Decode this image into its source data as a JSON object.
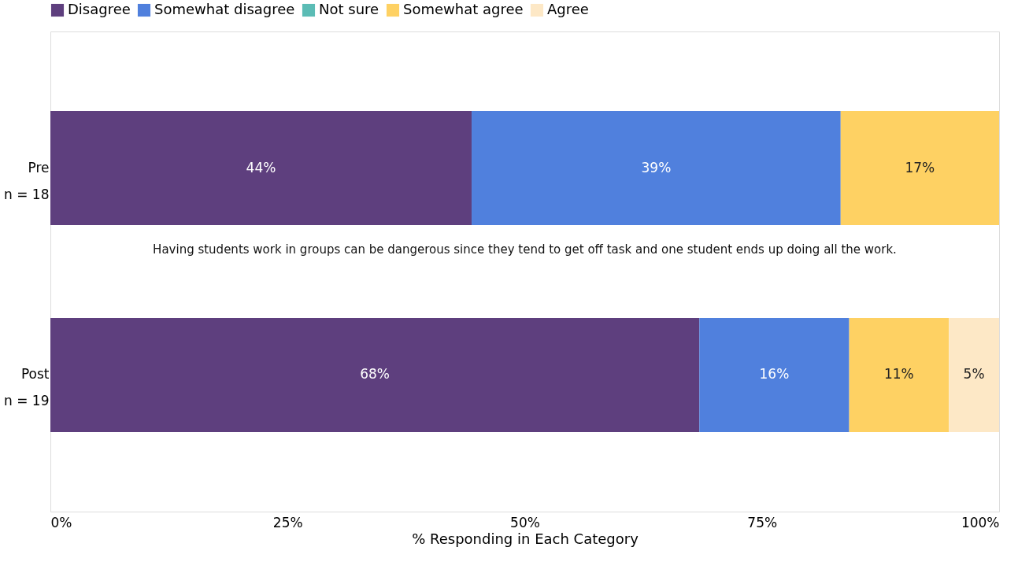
{
  "chart_data": {
    "type": "bar",
    "orientation": "horizontal",
    "stacked": true,
    "xlabel": "% Responding in Each Category",
    "categories": [
      "Pre\nn = 18",
      "Post\nn = 19"
    ],
    "series": [
      {
        "name": "Disagree",
        "color": "#5e3f7e",
        "values": [
          44.4,
          68.4
        ],
        "value_labels": [
          "44%",
          "68%"
        ]
      },
      {
        "name": "Somewhat disagree",
        "color": "#5080dd",
        "values": [
          38.9,
          15.8
        ],
        "value_labels": [
          "39%",
          "16%"
        ]
      },
      {
        "name": "Not sure",
        "color": "#5bbcb5",
        "values": [
          null,
          null
        ],
        "value_labels": [
          null,
          null
        ]
      },
      {
        "name": "Somewhat agree",
        "color": "#fed163",
        "values": [
          16.7,
          10.5
        ],
        "value_labels": [
          "17%",
          "11%"
        ]
      },
      {
        "name": "Agree",
        "color": "#fde8c6",
        "values": [
          null,
          5.3
        ],
        "value_labels": [
          null,
          "5%"
        ]
      }
    ],
    "xlim": [
      0,
      100
    ],
    "xticks": [
      {
        "value": 0,
        "label": "0%"
      },
      {
        "value": 25,
        "label": "25%"
      },
      {
        "value": 50,
        "label": "50%"
      },
      {
        "value": 75,
        "label": "75%"
      },
      {
        "value": 100,
        "label": "100%"
      }
    ],
    "annotations": [
      "Having students work in groups can be dangerous since they tend to get off task and one student ends up doing all the work."
    ],
    "legend": "top",
    "grid": false
  }
}
